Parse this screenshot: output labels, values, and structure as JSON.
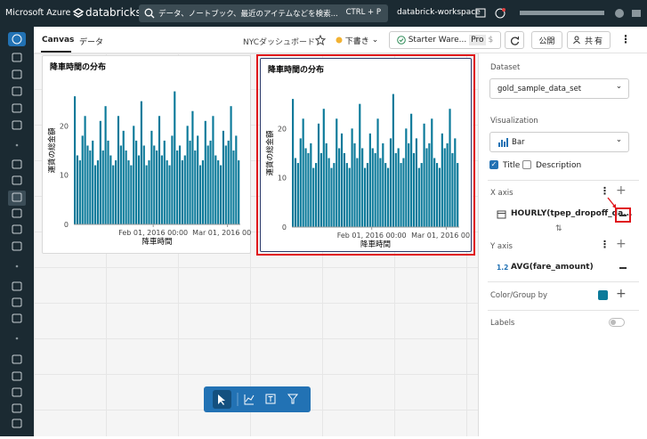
{
  "top_bar": {
    "brand": "Microsoft Azure",
    "product": "databricks",
    "search": "データ、ノートブック、最近のアイテムなどを検索...",
    "shortcut": "CTRL + P",
    "workspace": "databrick-workspace"
  },
  "header": {
    "tabs": [
      "Canvas",
      "データ"
    ],
    "dashboard_name": "NYCダッシュボード",
    "status": "下書き",
    "warehouse": "Starter Ware...",
    "tier": "Pro",
    "cost": "$",
    "publish": "公開",
    "share": "共有"
  },
  "widgets": [
    {
      "title": "降車時間の分布",
      "x_label": "降車時間",
      "y_label": "運賃の総金額",
      "color": "#0b7a9a",
      "x": [
        "2016-01-01 00:00",
        "2016-01-02 00:00",
        "2016-01-03 00:00",
        "2016-01-04 00:00",
        "2016-01-05 00:00",
        "2016-01-06 00:00",
        "2016-01-07 00:00",
        "2016-01-08 00:00",
        "2016-01-09 00:00",
        "2016-01-10 00:00",
        "2016-01-11 00:00",
        "2016-01-12 00:00",
        "2016-01-13 00:00",
        "2016-01-14 00:00",
        "2016-01-15 00:00",
        "2016-01-16 00:00",
        "2016-01-17 00:00",
        "2016-01-18 00:00",
        "2016-01-19 00:00",
        "2016-01-20 00:00",
        "2016-01-21 00:00",
        "2016-01-22 00:00",
        "2016-01-23 00:00",
        "2016-01-24 00:00",
        "2016-01-25 00:00",
        "2016-01-26 00:00",
        "2016-01-27 00:00",
        "2016-01-28 00:00",
        "2016-01-29 00:00",
        "2016-01-30 00:00",
        "2016-01-31 00:00",
        "2016-02-01 00:00",
        "2016-02-02 00:00",
        "2016-02-03 00:00",
        "2016-02-04 00:00",
        "2016-02-05 00:00",
        "2016-02-06 00:00",
        "2016-02-07 00:00",
        "2016-02-08 00:00",
        "2016-02-09 00:00",
        "2016-02-10 00:00",
        "2016-02-11 00:00",
        "2016-02-12 00:00",
        "2016-02-13 00:00",
        "2016-02-14 00:00",
        "2016-02-15 00:00",
        "2016-02-16 00:00",
        "2016-02-17 00:00",
        "2016-02-18 00:00",
        "2016-02-19 00:00",
        "2016-02-20 00:00",
        "2016-02-21 00:00",
        "2016-02-22 00:00",
        "2016-02-23 00:00",
        "2016-02-24 00:00",
        "2016-02-25 00:00",
        "2016-02-26 00:00",
        "2016-02-27 00:00",
        "2016-02-28 00:00",
        "2016-02-29 00:00",
        "2016-03-01 00:00",
        "2016-03-02 00:00",
        "2016-03-03 00:00",
        "2016-03-04 00:00",
        "2016-03-05 00:00"
      ],
      "values": [
        26,
        14,
        13,
        18,
        22,
        16,
        15,
        17,
        12,
        13,
        21,
        15,
        24,
        17,
        14,
        12,
        13,
        22,
        16,
        19,
        15,
        13,
        12,
        20,
        17,
        14,
        25,
        16,
        12,
        13,
        19,
        16,
        15,
        22,
        14,
        17,
        13,
        12,
        18,
        27,
        15,
        16,
        13,
        14,
        20,
        17,
        23,
        15,
        18,
        12,
        13,
        21,
        16,
        17,
        22,
        14,
        13,
        12,
        19,
        16,
        17,
        24,
        15,
        18,
        13
      ],
      "xlim": [
        "2016-01-01 00:00",
        "2016-03-06 00:00"
      ],
      "xticks": [
        {
          "value": "2016-02-01 00:00",
          "label": "Feb 01, 2016 00:00"
        },
        {
          "value": "2016-03-01 00:00",
          "label": "Mar 01, 2016 00:00"
        }
      ],
      "ylim": [
        0,
        30
      ],
      "yticks": [
        0,
        10,
        20
      ]
    },
    {
      "title": "降車時間の分布",
      "x_label": "降車時間",
      "y_label": "運賃の総金額",
      "color": "#0b7a9a",
      "x": [
        "2016-01-01 00:00",
        "2016-01-02 00:00",
        "2016-01-03 00:00",
        "2016-01-04 00:00",
        "2016-01-05 00:00",
        "2016-01-06 00:00",
        "2016-01-07 00:00",
        "2016-01-08 00:00",
        "2016-01-09 00:00",
        "2016-01-10 00:00",
        "2016-01-11 00:00",
        "2016-01-12 00:00",
        "2016-01-13 00:00",
        "2016-01-14 00:00",
        "2016-01-15 00:00",
        "2016-01-16 00:00",
        "2016-01-17 00:00",
        "2016-01-18 00:00",
        "2016-01-19 00:00",
        "2016-01-20 00:00",
        "2016-01-21 00:00",
        "2016-01-22 00:00",
        "2016-01-23 00:00",
        "2016-01-24 00:00",
        "2016-01-25 00:00",
        "2016-01-26 00:00",
        "2016-01-27 00:00",
        "2016-01-28 00:00",
        "2016-01-29 00:00",
        "2016-01-30 00:00",
        "2016-01-31 00:00",
        "2016-02-01 00:00",
        "2016-02-02 00:00",
        "2016-02-03 00:00",
        "2016-02-04 00:00",
        "2016-02-05 00:00",
        "2016-02-06 00:00",
        "2016-02-07 00:00",
        "2016-02-08 00:00",
        "2016-02-09 00:00",
        "2016-02-10 00:00",
        "2016-02-11 00:00",
        "2016-02-12 00:00",
        "2016-02-13 00:00",
        "2016-02-14 00:00",
        "2016-02-15 00:00",
        "2016-02-16 00:00",
        "2016-02-17 00:00",
        "2016-02-18 00:00",
        "2016-02-19 00:00",
        "2016-02-20 00:00",
        "2016-02-21 00:00",
        "2016-02-22 00:00",
        "2016-02-23 00:00",
        "2016-02-24 00:00",
        "2016-02-25 00:00",
        "2016-02-26 00:00",
        "2016-02-27 00:00",
        "2016-02-28 00:00",
        "2016-02-29 00:00",
        "2016-03-01 00:00",
        "2016-03-02 00:00",
        "2016-03-03 00:00",
        "2016-03-04 00:00",
        "2016-03-05 00:00"
      ],
      "values": [
        26,
        14,
        13,
        18,
        22,
        16,
        15,
        17,
        12,
        13,
        21,
        15,
        24,
        17,
        14,
        12,
        13,
        22,
        16,
        19,
        15,
        13,
        12,
        20,
        17,
        14,
        25,
        16,
        12,
        13,
        19,
        16,
        15,
        22,
        14,
        17,
        13,
        12,
        18,
        27,
        15,
        16,
        13,
        14,
        20,
        17,
        23,
        15,
        18,
        12,
        13,
        21,
        16,
        17,
        22,
        14,
        13,
        12,
        19,
        16,
        17,
        24,
        15,
        18,
        13
      ],
      "xlim": [
        "2016-01-01 00:00",
        "2016-03-06 00:00"
      ],
      "xticks": [
        {
          "value": "2016-02-01 00:00",
          "label": "Feb 01, 2016 00:00"
        },
        {
          "value": "2016-03-01 00:00",
          "label": "Mar 01, 2016 00:00"
        }
      ],
      "ylim": [
        0,
        30
      ],
      "yticks": [
        0,
        10,
        20
      ]
    }
  ],
  "panel": {
    "dataset_label": "Dataset",
    "dataset": "gold_sample_data_set",
    "visualization_label": "Visualization",
    "visualization": "Bar",
    "title_option": "Title",
    "description_option": "Description",
    "x_axis_label": "X axis",
    "x_field": "HOURLY(tpep_dropoff_da...",
    "y_axis_label": "Y axis",
    "y_field_type": "1.2",
    "y_field": "AVG(fare_amount)",
    "color_label": "Color/Group by",
    "labels_label": "Labels"
  }
}
